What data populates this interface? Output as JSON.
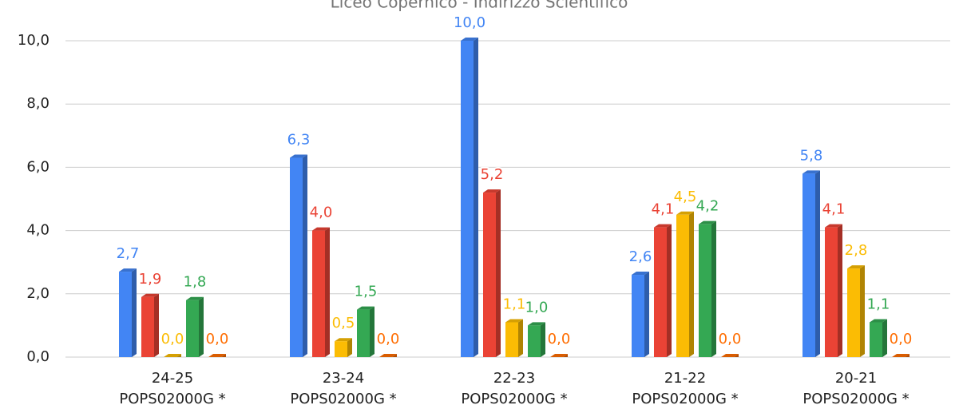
{
  "chart_data": {
    "type": "bar3d",
    "title": "Liceo Copernico - Indirizzo Scientifico",
    "categories": [
      [
        "24-25",
        "POPS02000G *"
      ],
      [
        "23-24",
        "POPS02000G *"
      ],
      [
        "22-23",
        "POPS02000G *"
      ],
      [
        "21-22",
        "POPS02000G *"
      ],
      [
        "20-21",
        "POPS02000G *"
      ]
    ],
    "series": [
      {
        "color": "#4285f4",
        "values": [
          2.7,
          6.3,
          10.0,
          2.6,
          5.8
        ],
        "value_labels": [
          "2,7",
          "6,3",
          "10,0",
          "2,6",
          "5,8"
        ]
      },
      {
        "color": "#ea4335",
        "values": [
          1.9,
          4.0,
          5.2,
          4.1,
          4.1
        ],
        "value_labels": [
          "1,9",
          "4,0",
          "5,2",
          "4,1",
          "4,1"
        ]
      },
      {
        "color": "#fbbc04",
        "values": [
          0.0,
          0.5,
          1.1,
          4.5,
          2.8
        ],
        "value_labels": [
          "0,0",
          "0,5",
          "1,1",
          "4,5",
          "2,8"
        ]
      },
      {
        "color": "#34a853",
        "values": [
          1.8,
          1.5,
          1.0,
          4.2,
          1.1
        ],
        "value_labels": [
          "1,8",
          "1,5",
          "1,0",
          "4,2",
          "1,1"
        ]
      },
      {
        "color": "#ff6d01",
        "values": [
          0.0,
          0.0,
          0.0,
          0.0,
          0.0
        ],
        "value_labels": [
          "0,0",
          "0,0",
          "0,0",
          "0,0",
          "0,0"
        ]
      }
    ],
    "ylim": [
      0,
      10
    ],
    "yticks": [
      {
        "value": 0,
        "label": "0,0"
      },
      {
        "value": 2,
        "label": "2,0"
      },
      {
        "value": 4,
        "label": "4,0"
      },
      {
        "value": 6,
        "label": "6,0"
      },
      {
        "value": 8,
        "label": "8,0"
      },
      {
        "value": 10,
        "label": "10,0"
      }
    ],
    "grid": true
  }
}
